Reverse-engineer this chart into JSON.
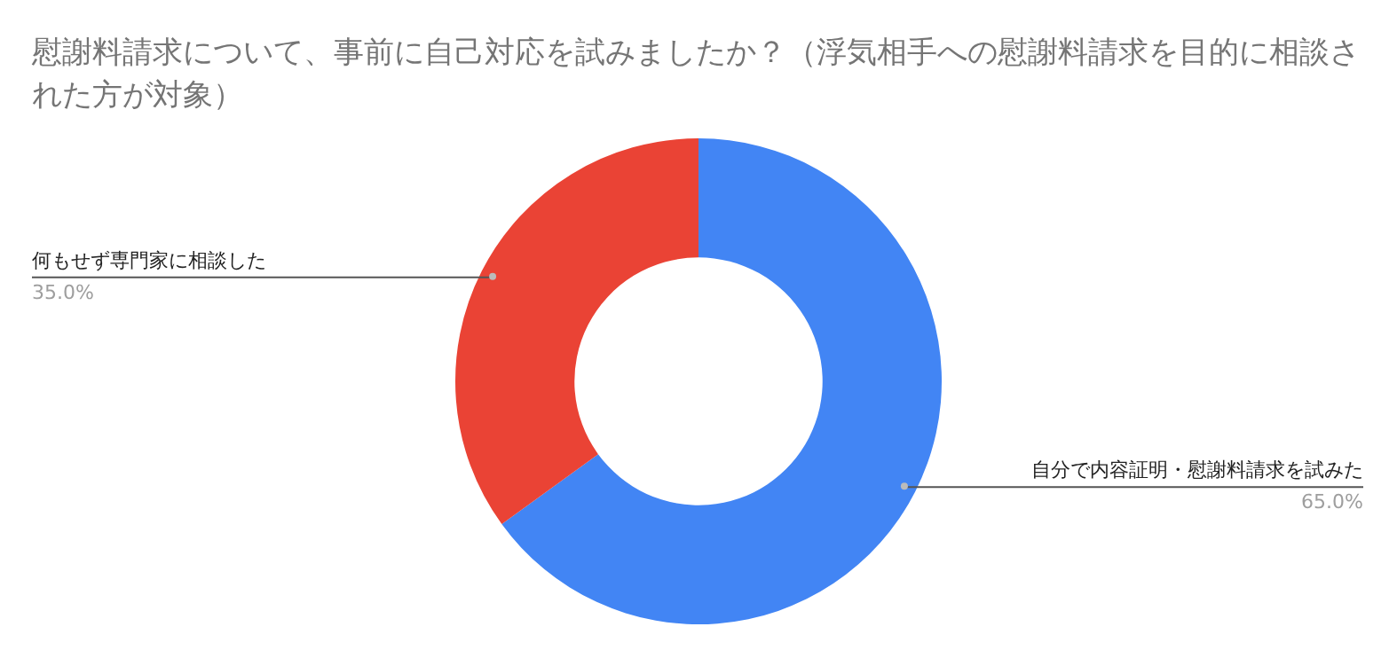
{
  "chart_data": {
    "type": "donut",
    "title": "慰謝料請求について、事前に自己対応を試みましたか？（浮気相手への慰謝料請求を目的に相談された方が対象）",
    "categories": [
      "自分で内容証明・慰謝料請求を試みた",
      "何もせず専門家に相談した"
    ],
    "values": [
      65,
      35
    ],
    "colors": [
      "#4285f4",
      "#ea4335"
    ],
    "value_labels": [
      "65.0%",
      "35.0%"
    ],
    "legend": false
  }
}
